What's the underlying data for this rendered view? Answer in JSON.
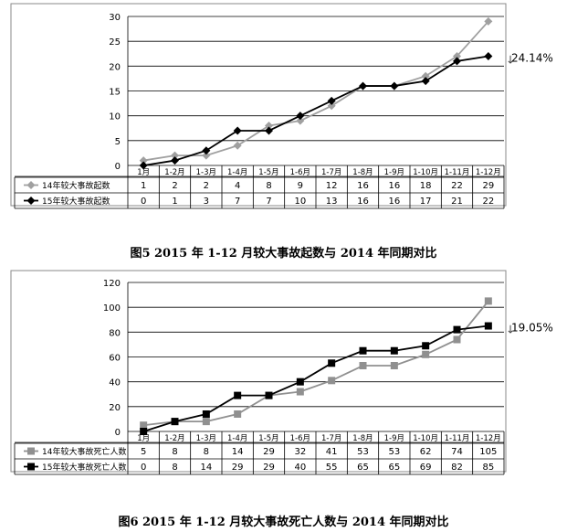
{
  "charts": [
    {
      "caption": "图5   2015 年 1-12 月较大事故起数与 2014 年同期对比",
      "annotation": "24.14%",
      "arrow": "↓",
      "chart_data": {
        "type": "line",
        "categories": [
          "1月",
          "1-2月",
          "1-3月",
          "1-4月",
          "1-5月",
          "1-6月",
          "1-7月",
          "1-8月",
          "1-9月",
          "1-10月",
          "1-11月",
          "1-12月"
        ],
        "series": [
          {
            "name": "14年较大事故起数",
            "marker": "diamond",
            "color": "#a0a0a0",
            "values": [
              1,
              2,
              2,
              4,
              8,
              9,
              12,
              16,
              16,
              18,
              22,
              29
            ]
          },
          {
            "name": "15年较大事故起数",
            "marker": "diamond",
            "color": "#000000",
            "values": [
              0,
              1,
              3,
              7,
              7,
              10,
              13,
              16,
              16,
              17,
              21,
              22
            ]
          }
        ],
        "yticks": [
          0,
          5,
          10,
          15,
          20,
          25,
          30
        ],
        "ylim": [
          0,
          30
        ],
        "grid": true,
        "legend": "data-table"
      }
    },
    {
      "caption": "图6   2015 年 1-12 月较大事故死亡人数与 2014 年同期对比",
      "annotation": "19.05%",
      "arrow": "↓",
      "chart_data": {
        "type": "line",
        "categories": [
          "1月",
          "1-2月",
          "1-3月",
          "1-4月",
          "1-5月",
          "1-6月",
          "1-7月",
          "1-8月",
          "1-9月",
          "1-10月",
          "1-11月",
          "1-12月"
        ],
        "series": [
          {
            "name": "14年较大事故死亡人数",
            "marker": "square",
            "color": "#909090",
            "values": [
              5,
              8,
              8,
              14,
              29,
              32,
              41,
              53,
              53,
              62,
              74,
              105
            ]
          },
          {
            "name": "15年较大事故死亡人数",
            "marker": "square",
            "color": "#000000",
            "values": [
              0,
              8,
              14,
              29,
              29,
              40,
              55,
              65,
              65,
              69,
              82,
              85
            ]
          }
        ],
        "yticks": [
          0,
          20,
          40,
          60,
          80,
          100,
          120
        ],
        "ylim": [
          0,
          120
        ],
        "grid": true,
        "legend": "data-table"
      }
    }
  ]
}
